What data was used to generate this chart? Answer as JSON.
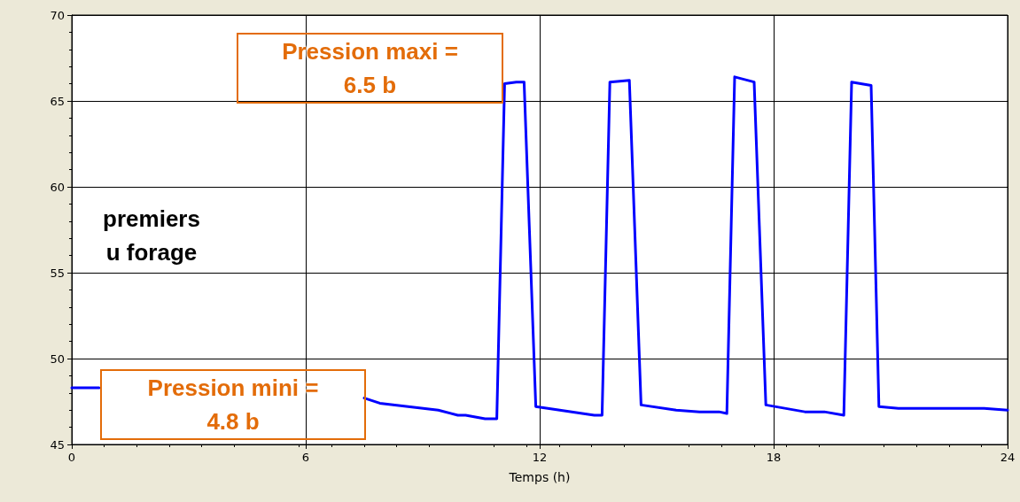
{
  "chart_data": {
    "type": "line",
    "xlabel": "Temps (h)",
    "x": [
      0,
      0.7,
      0.8,
      7.5,
      7.9,
      9.4,
      9.9,
      10.1,
      10.6,
      10.9,
      11.1,
      11.4,
      11.6,
      11.9,
      13.4,
      13.6,
      13.8,
      14.3,
      14.6,
      15.5,
      16.1,
      16.6,
      16.8,
      17.0,
      17.5,
      17.8,
      18.8,
      19.3,
      19.8,
      20.0,
      20.5,
      20.7,
      21.2,
      23.4,
      24.0
    ],
    "series": [
      {
        "color": "#0000ff",
        "values": [
          48.3,
          48.3,
          null,
          47.7,
          47.4,
          47.0,
          46.7,
          46.7,
          46.5,
          46.5,
          66.0,
          66.1,
          66.1,
          47.2,
          46.7,
          46.7,
          66.1,
          66.2,
          47.3,
          47.0,
          46.9,
          46.9,
          46.8,
          66.4,
          66.1,
          47.3,
          46.9,
          46.9,
          46.7,
          66.1,
          65.9,
          47.2,
          47.1,
          47.1,
          47.0
        ]
      }
    ],
    "xlim": [
      0,
      24
    ],
    "xticks": [
      0,
      6,
      12,
      18,
      24
    ],
    "ylim": [
      45,
      70
    ],
    "yticks": [
      45,
      50,
      55,
      60,
      65,
      70
    ],
    "grid": true,
    "marker": "none",
    "line_style": "solid",
    "annotations": [
      "Pression maxi =\n6.5 b",
      "Pression mini =\n4.8 b",
      "premiers\nu forage"
    ]
  }
}
